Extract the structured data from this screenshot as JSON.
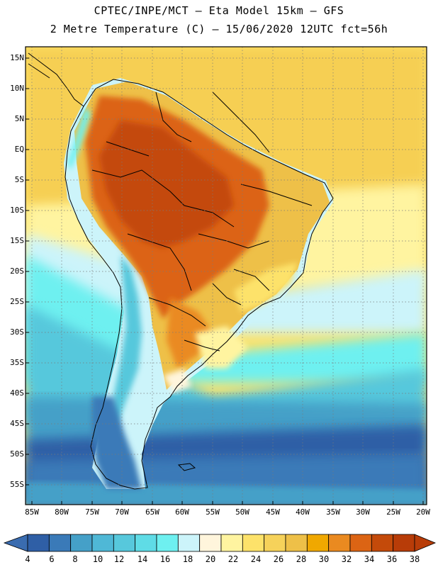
{
  "title_line1": "CPTEC/INPE/MCT –  Eta Model 15km – GFS",
  "title_line2": "2 Metre Temperature (C) – 15/06/2020 12UTC fct=56h",
  "lat_labels": [
    "15N",
    "10N",
    "5N",
    "EQ",
    "5S",
    "10S",
    "15S",
    "20S",
    "25S",
    "30S",
    "35S",
    "40S",
    "45S",
    "50S",
    "55S"
  ],
  "lon_labels": [
    "85W",
    "80W",
    "75W",
    "70W",
    "65W",
    "60W",
    "55W",
    "50W",
    "45W",
    "40W",
    "35W",
    "30W",
    "25W",
    "20W"
  ],
  "colorbar": {
    "labels": [
      "4",
      "6",
      "8",
      "10",
      "12",
      "14",
      "16",
      "18",
      "20",
      "22",
      "24",
      "26",
      "28",
      "30",
      "32",
      "34",
      "36",
      "38"
    ],
    "colors": [
      "#2f5fa6",
      "#3a7ab8",
      "#45a0c8",
      "#4fb8d6",
      "#57c8dc",
      "#5fdce6",
      "#6ef0f0",
      "#ccf4fa",
      "#fff5dc",
      "#fff4a0",
      "#fde26a",
      "#f6d25a",
      "#eec048",
      "#f0a800",
      "#ea8a20",
      "#dc6414",
      "#c44a0a",
      "#b83c08"
    ],
    "low_color": "#3a6cb0",
    "high_color": "#b83c08"
  }
}
